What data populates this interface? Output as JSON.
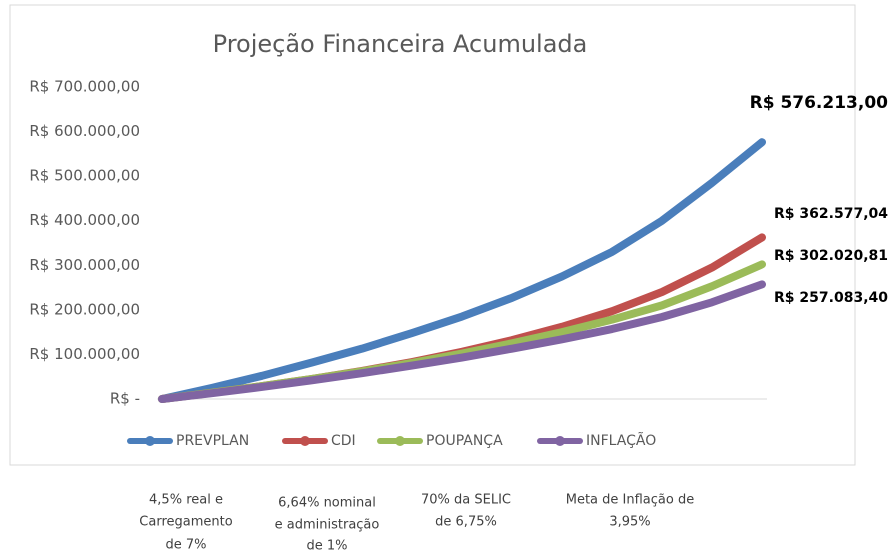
{
  "chart_data": {
    "type": "line",
    "title": "Projeção Financeira Acumulada",
    "categories": [
      null,
      null,
      null,
      null,
      null,
      null,
      null,
      null,
      null,
      null,
      null,
      null,
      null
    ],
    "series": [
      {
        "name": "PREVPLAN",
        "color": "#4a7ebb",
        "values": [
          0,
          25000,
          52000,
          82000,
          113000,
          148000,
          185000,
          227000,
          275000,
          330000,
          400000,
          485000,
          576213
        ],
        "value_labels": [
          null,
          null,
          null,
          null,
          null,
          null,
          null,
          null,
          null,
          null,
          null,
          null,
          "R$ 576.213,00"
        ]
      },
      {
        "name": "CDI",
        "color": "#c0504d",
        "values": [
          0,
          14000,
          29000,
          45000,
          63000,
          83000,
          106000,
          132000,
          162000,
          197000,
          240000,
          295000,
          362577.04
        ],
        "value_labels": [
          null,
          null,
          null,
          null,
          null,
          null,
          null,
          null,
          null,
          null,
          null,
          null,
          "R$ 362.577,04"
        ]
      },
      {
        "name": "POUPANÇA",
        "color": "#9bbb59",
        "values": [
          0,
          14000,
          29000,
          45000,
          62000,
          81000,
          102000,
          125000,
          150000,
          178000,
          210000,
          253000,
          302020.81
        ],
        "value_labels": [
          null,
          null,
          null,
          null,
          null,
          null,
          null,
          null,
          null,
          null,
          null,
          null,
          "R$ 302.020,81"
        ]
      },
      {
        "name": "INFLAÇÃO",
        "color": "#8064a2",
        "values": [
          0,
          13000,
          27000,
          42000,
          58000,
          75000,
          93000,
          113000,
          134000,
          157000,
          184000,
          217000,
          257083.4
        ],
        "value_labels": [
          null,
          null,
          null,
          null,
          null,
          null,
          null,
          null,
          null,
          null,
          null,
          null,
          "R$ 257.083,40"
        ]
      }
    ],
    "ylim": [
      0,
      700000
    ],
    "yticks": [
      {
        "value": 0,
        "label": "R$ -"
      },
      {
        "value": 100000,
        "label": "R$ 100.000,00"
      },
      {
        "value": 200000,
        "label": "R$ 200.000,00"
      },
      {
        "value": 300000,
        "label": "R$ 300.000,00"
      },
      {
        "value": 400000,
        "label": "R$ 400.000,00"
      },
      {
        "value": 500000,
        "label": "R$ 500.000,00"
      },
      {
        "value": 600000,
        "label": "R$ 600.000,00"
      },
      {
        "value": 700000,
        "label": "R$ 700.000,00"
      }
    ],
    "grid": true,
    "legend": "bottom",
    "notes": [
      [
        "4,5% real e",
        "Carregamento",
        "de 7%"
      ],
      [
        "6,64% nominal",
        "e administração",
        "de 1%"
      ],
      [
        "70% da SELIC",
        "de 6,75%"
      ],
      [
        "Meta de Inflação de",
        "3,95%"
      ]
    ]
  }
}
